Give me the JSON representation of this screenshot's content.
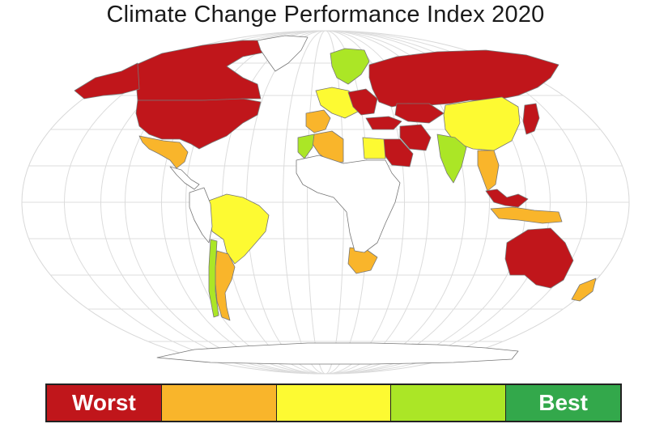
{
  "title": "Climate Change Performance Index 2020",
  "legend": {
    "items": [
      {
        "label": "Worst",
        "color": "#c0161b"
      },
      {
        "label": "",
        "color": "#f9b52b"
      },
      {
        "label": "",
        "color": "#fdfa32"
      },
      {
        "label": "",
        "color": "#abe626"
      },
      {
        "label": "Best",
        "color": "#33a84b"
      }
    ]
  },
  "map": {
    "ocean_color": "#ffffff",
    "graticule_color": "#dcdcdc",
    "border_color": "#777777",
    "no_data_color": "#ffffff",
    "regions": [
      {
        "name": "canada",
        "level": 1
      },
      {
        "name": "usa",
        "level": 1
      },
      {
        "name": "alaska",
        "level": 1
      },
      {
        "name": "mexico",
        "level": 2
      },
      {
        "name": "central-america",
        "level": 0
      },
      {
        "name": "brazil",
        "level": 3
      },
      {
        "name": "argentina",
        "level": 2
      },
      {
        "name": "chile",
        "level": 4
      },
      {
        "name": "south-america-west",
        "level": 0
      },
      {
        "name": "russia",
        "level": 1
      },
      {
        "name": "scandinavia",
        "level": 4
      },
      {
        "name": "western-europe",
        "level": 3
      },
      {
        "name": "eastern-europe",
        "level": 1
      },
      {
        "name": "iberia",
        "level": 2
      },
      {
        "name": "turkey",
        "level": 1
      },
      {
        "name": "iran",
        "level": 1
      },
      {
        "name": "saudi-arabia",
        "level": 1
      },
      {
        "name": "kazakhstan",
        "level": 1
      },
      {
        "name": "china",
        "level": 3
      },
      {
        "name": "india",
        "level": 4
      },
      {
        "name": "japan",
        "level": 1
      },
      {
        "name": "southeast-asia",
        "level": 2
      },
      {
        "name": "malaysia",
        "level": 1
      },
      {
        "name": "indonesia",
        "level": 2
      },
      {
        "name": "australia",
        "level": 1
      },
      {
        "name": "new-zealand",
        "level": 2
      },
      {
        "name": "algeria",
        "level": 2
      },
      {
        "name": "morocco",
        "level": 4
      },
      {
        "name": "egypt",
        "level": 3
      },
      {
        "name": "south-africa",
        "level": 2
      },
      {
        "name": "africa-other",
        "level": 0
      },
      {
        "name": "greenland",
        "level": 0
      },
      {
        "name": "antarctica",
        "level": 0
      }
    ]
  }
}
